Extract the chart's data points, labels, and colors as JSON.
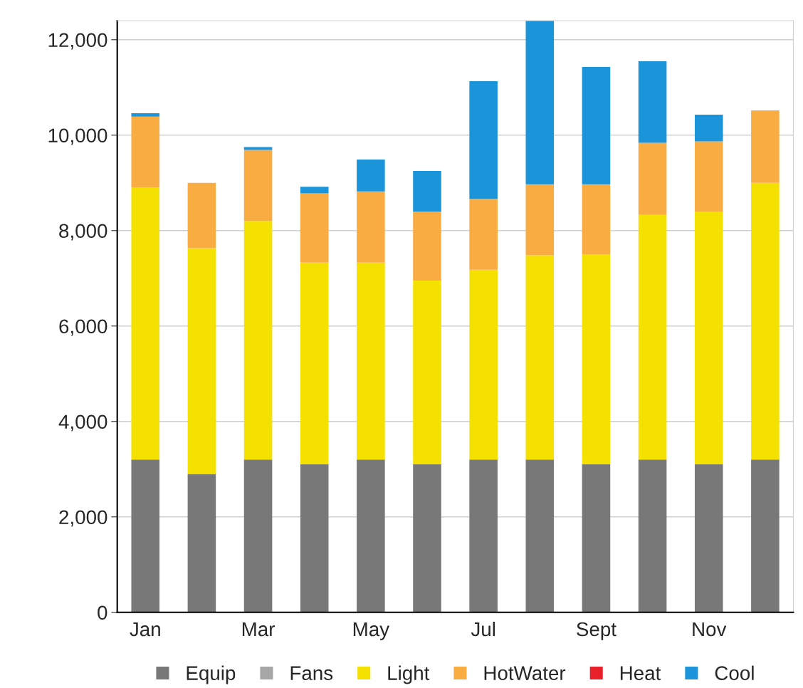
{
  "chart_data": {
    "type": "bar",
    "stacked": true,
    "categories": [
      "Jan",
      null,
      "Mar",
      null,
      "May",
      null,
      "Jul",
      null,
      "Sept",
      null,
      "Nov",
      null
    ],
    "series": [
      {
        "name": "Equip",
        "color": "#787878",
        "values": [
          3200,
          2900,
          3200,
          3100,
          3200,
          3100,
          3200,
          3200,
          3100,
          3200,
          3100,
          3200
        ]
      },
      {
        "name": "Fans",
        "color": "#a6a6a6",
        "values": [
          0,
          0,
          0,
          0,
          0,
          0,
          0,
          0,
          0,
          0,
          0,
          0
        ]
      },
      {
        "name": "Light",
        "color": "#f5e100",
        "values": [
          5700,
          4730,
          5000,
          4230,
          4130,
          3850,
          3980,
          4280,
          4400,
          5130,
          5300,
          5800
        ]
      },
      {
        "name": "HotWater",
        "color": "#f9ac42",
        "values": [
          1490,
          1370,
          1490,
          1450,
          1490,
          1450,
          1490,
          1490,
          1470,
          1510,
          1470,
          1520
        ]
      },
      {
        "name": "Heat",
        "color": "#e8202a",
        "values": [
          0,
          0,
          0,
          0,
          0,
          0,
          0,
          0,
          0,
          0,
          0,
          0
        ]
      },
      {
        "name": "Cool",
        "color": "#1b94d9",
        "values": [
          70,
          0,
          60,
          140,
          670,
          850,
          2460,
          3430,
          2460,
          1710,
          560,
          0
        ]
      }
    ],
    "ylim": [
      0,
      12400
    ],
    "yticks": [
      0,
      {
        "value": 2000,
        "label": "2,000"
      },
      {
        "value": 4000,
        "label": "4,000"
      },
      {
        "value": 6000,
        "label": "6,000"
      },
      {
        "value": 8000,
        "label": "8,000"
      },
      {
        "value": 10000,
        "label": "10,000"
      },
      {
        "value": 12000,
        "label": "12,000"
      }
    ],
    "grid": "y",
    "legend": "bottom"
  }
}
